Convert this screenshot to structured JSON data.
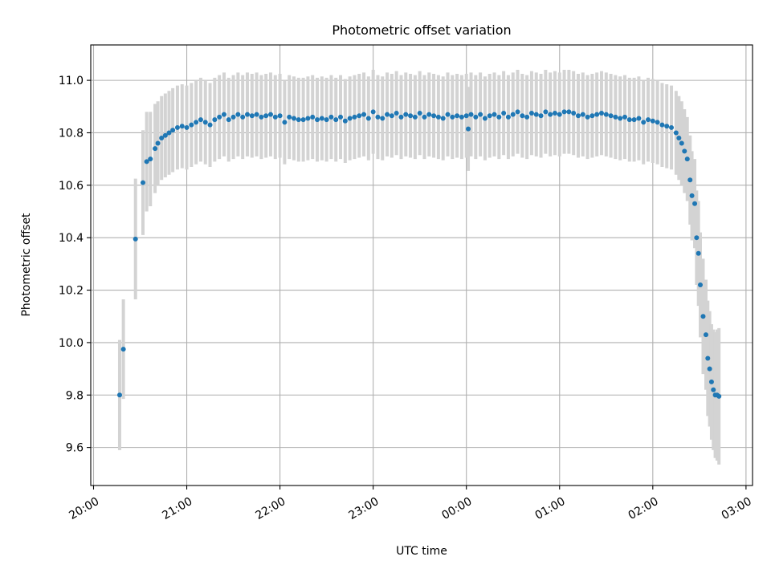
{
  "chart_data": {
    "type": "scatter",
    "title": "Photometric offset variation",
    "xlabel": "UTC time",
    "ylabel": "Photometric offset",
    "x_unit": "hours since 20:00 UTC",
    "xlim": [
      19.97,
      27.07
    ],
    "ylim": [
      9.455,
      11.135
    ],
    "x_ticks": [
      {
        "value": 20,
        "label": "20:00"
      },
      {
        "value": 21,
        "label": "21:00"
      },
      {
        "value": 22,
        "label": "22:00"
      },
      {
        "value": 23,
        "label": "23:00"
      },
      {
        "value": 24,
        "label": "00:00"
      },
      {
        "value": 25,
        "label": "01:00"
      },
      {
        "value": 26,
        "label": "02:00"
      },
      {
        "value": 27,
        "label": "03:00"
      }
    ],
    "y_ticks": [
      {
        "value": 9.6,
        "label": "9.6"
      },
      {
        "value": 9.8,
        "label": "9.8"
      },
      {
        "value": 10.0,
        "label": "10.0"
      },
      {
        "value": 10.2,
        "label": "10.2"
      },
      {
        "value": 10.4,
        "label": "10.4"
      },
      {
        "value": 10.6,
        "label": "10.6"
      },
      {
        "value": 10.8,
        "label": "10.8"
      },
      {
        "value": 11.0,
        "label": "11.0"
      }
    ],
    "grid": true,
    "colors": {
      "points": "#1f77b4",
      "error_bars": "#d3d3d3",
      "grid": "#b0b0b0"
    },
    "series": [
      {
        "y_error_bars": true,
        "x": [
          20.28,
          20.32,
          20.45,
          20.53,
          20.57,
          20.61,
          20.66,
          20.69,
          20.73,
          20.77,
          20.81,
          20.85,
          20.9,
          20.95,
          21.0,
          21.05,
          21.1,
          21.15,
          21.2,
          21.25,
          21.3,
          21.35,
          21.4,
          21.45,
          21.5,
          21.55,
          21.6,
          21.65,
          21.7,
          21.75,
          21.8,
          21.85,
          21.9,
          21.95,
          22.0,
          22.05,
          22.1,
          22.15,
          22.2,
          22.25,
          22.3,
          22.35,
          22.4,
          22.45,
          22.5,
          22.55,
          22.6,
          22.65,
          22.7,
          22.75,
          22.8,
          22.85,
          22.9,
          22.95,
          23.0,
          23.05,
          23.1,
          23.15,
          23.2,
          23.25,
          23.3,
          23.35,
          23.4,
          23.45,
          23.5,
          23.55,
          23.6,
          23.65,
          23.7,
          23.75,
          23.8,
          23.85,
          23.9,
          23.95,
          24.0,
          24.02,
          24.05,
          24.1,
          24.15,
          24.2,
          24.25,
          24.3,
          24.35,
          24.4,
          24.45,
          24.5,
          24.55,
          24.6,
          24.65,
          24.7,
          24.75,
          24.8,
          24.85,
          24.9,
          24.95,
          25.0,
          25.05,
          25.1,
          25.15,
          25.2,
          25.25,
          25.3,
          25.35,
          25.4,
          25.45,
          25.5,
          25.55,
          25.6,
          25.65,
          25.7,
          25.75,
          25.8,
          25.85,
          25.9,
          25.95,
          26.0,
          26.05,
          26.1,
          26.15,
          26.2,
          26.25,
          26.28,
          26.31,
          26.34,
          26.37,
          26.4,
          26.42,
          26.45,
          26.47,
          26.49,
          26.51,
          26.54,
          26.57,
          26.59,
          26.61,
          26.63,
          26.65,
          26.67,
          26.69,
          26.71
        ],
        "y": [
          9.8,
          9.975,
          10.395,
          10.61,
          10.69,
          10.7,
          10.74,
          10.76,
          10.78,
          10.79,
          10.8,
          10.81,
          10.82,
          10.825,
          10.82,
          10.83,
          10.84,
          10.85,
          10.84,
          10.83,
          10.85,
          10.86,
          10.87,
          10.85,
          10.86,
          10.87,
          10.86,
          10.87,
          10.865,
          10.87,
          10.86,
          10.865,
          10.87,
          10.86,
          10.865,
          10.84,
          10.86,
          10.855,
          10.85,
          10.85,
          10.855,
          10.86,
          10.85,
          10.855,
          10.85,
          10.86,
          10.85,
          10.86,
          10.845,
          10.855,
          10.86,
          10.865,
          10.87,
          10.855,
          10.88,
          10.86,
          10.855,
          10.87,
          10.865,
          10.875,
          10.86,
          10.87,
          10.865,
          10.86,
          10.875,
          10.86,
          10.87,
          10.865,
          10.86,
          10.855,
          10.87,
          10.86,
          10.865,
          10.86,
          10.865,
          10.815,
          10.87,
          10.86,
          10.87,
          10.855,
          10.865,
          10.87,
          10.86,
          10.875,
          10.86,
          10.87,
          10.88,
          10.865,
          10.86,
          10.875,
          10.87,
          10.865,
          10.88,
          10.87,
          10.875,
          10.87,
          10.88,
          10.88,
          10.875,
          10.865,
          10.87,
          10.86,
          10.865,
          10.87,
          10.875,
          10.87,
          10.865,
          10.86,
          10.855,
          10.86,
          10.85,
          10.85,
          10.855,
          10.84,
          10.85,
          10.845,
          10.84,
          10.83,
          10.825,
          10.82,
          10.8,
          10.78,
          10.76,
          10.73,
          10.7,
          10.62,
          10.56,
          10.53,
          10.4,
          10.34,
          10.22,
          10.1,
          10.03,
          9.94,
          9.9,
          9.85,
          9.82,
          9.8,
          9.8,
          9.795
        ],
        "y_err": [
          0.21,
          0.19,
          0.23,
          0.2,
          0.19,
          0.18,
          0.17,
          0.16,
          0.16,
          0.16,
          0.16,
          0.16,
          0.16,
          0.16,
          0.16,
          0.16,
          0.16,
          0.16,
          0.16,
          0.16,
          0.16,
          0.16,
          0.16,
          0.16,
          0.16,
          0.16,
          0.16,
          0.16,
          0.16,
          0.16,
          0.16,
          0.16,
          0.16,
          0.16,
          0.16,
          0.16,
          0.16,
          0.16,
          0.16,
          0.16,
          0.16,
          0.16,
          0.16,
          0.16,
          0.16,
          0.16,
          0.16,
          0.16,
          0.16,
          0.16,
          0.16,
          0.16,
          0.16,
          0.16,
          0.16,
          0.16,
          0.16,
          0.16,
          0.16,
          0.16,
          0.16,
          0.16,
          0.16,
          0.16,
          0.16,
          0.16,
          0.16,
          0.16,
          0.16,
          0.16,
          0.16,
          0.16,
          0.16,
          0.16,
          0.16,
          0.16,
          0.16,
          0.16,
          0.16,
          0.16,
          0.16,
          0.16,
          0.16,
          0.16,
          0.16,
          0.16,
          0.16,
          0.16,
          0.16,
          0.16,
          0.16,
          0.16,
          0.16,
          0.16,
          0.16,
          0.16,
          0.16,
          0.16,
          0.16,
          0.16,
          0.16,
          0.16,
          0.16,
          0.16,
          0.16,
          0.16,
          0.16,
          0.16,
          0.16,
          0.16,
          0.16,
          0.16,
          0.16,
          0.16,
          0.16,
          0.16,
          0.16,
          0.16,
          0.16,
          0.16,
          0.16,
          0.16,
          0.16,
          0.16,
          0.16,
          0.17,
          0.17,
          0.17,
          0.18,
          0.2,
          0.2,
          0.22,
          0.21,
          0.22,
          0.22,
          0.22,
          0.23,
          0.24,
          0.25,
          0.26
        ]
      }
    ]
  }
}
